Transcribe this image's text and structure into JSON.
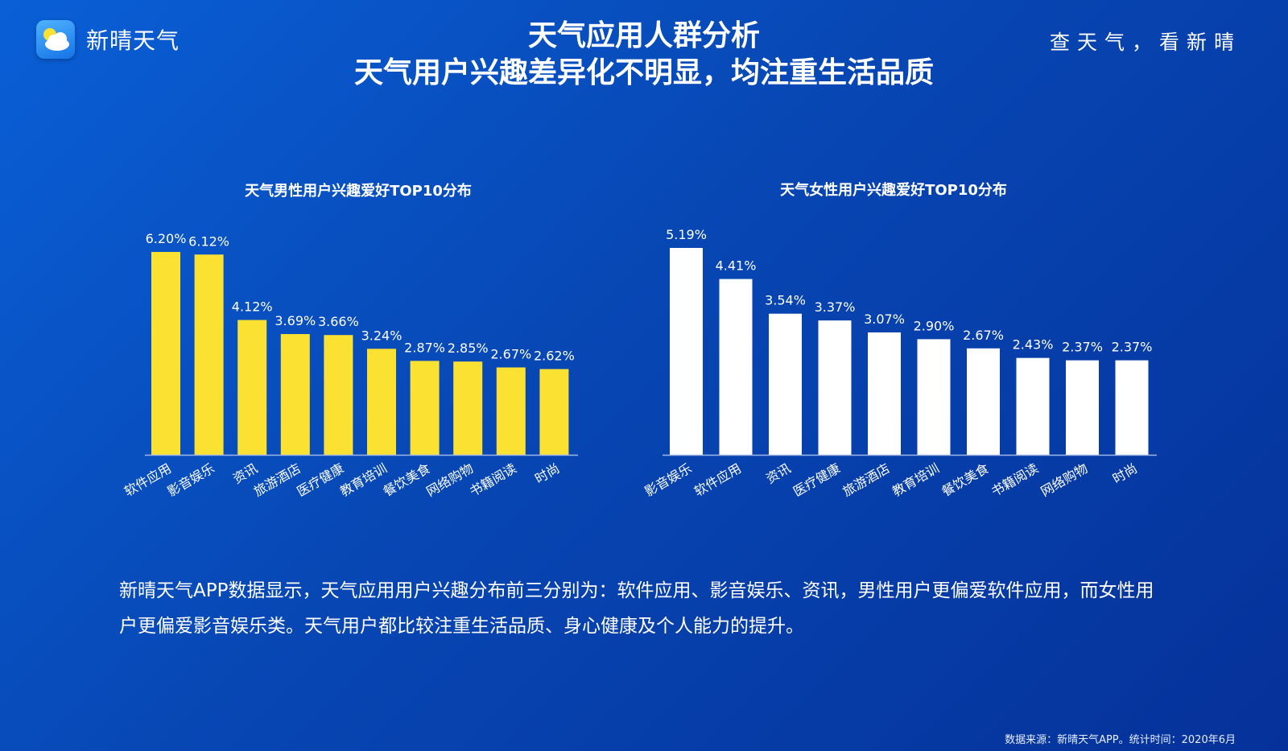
{
  "brand": {
    "name": "新晴天气",
    "slogan": "查天气，看新晴",
    "logo_icon": "cloud-sun-icon"
  },
  "header": {
    "title": "天气应用人群分析",
    "subtitle": "天气用户兴趣差异化不明显，均注重生活品质"
  },
  "colors": {
    "male_bar": "#fbe131",
    "female_bar": "#ffffff",
    "axis": "#9fb6e6"
  },
  "chart_data": [
    {
      "type": "bar",
      "title": "天气男性用户兴趣爱好TOP10分布",
      "categories": [
        "软件应用",
        "影音娱乐",
        "资讯",
        "旅游酒店",
        "医疗健康",
        "教育培训",
        "餐饮美食",
        "网络购物",
        "书籍阅读",
        "时尚"
      ],
      "values": [
        6.2,
        6.12,
        4.12,
        3.69,
        3.66,
        3.24,
        2.87,
        2.85,
        2.67,
        2.62
      ],
      "data_labels": [
        "6.20%",
        "6.12%",
        "4.12%",
        "3.69%",
        "3.66%",
        "3.24%",
        "2.87%",
        "2.85%",
        "2.67%",
        "2.62%"
      ],
      "ylim": [
        0,
        6.2
      ],
      "grid": false,
      "legend": "none"
    },
    {
      "type": "bar",
      "title": "天气女性用户兴趣爱好TOP10分布",
      "categories": [
        "影音娱乐",
        "软件应用",
        "资讯",
        "医疗健康",
        "旅游酒店",
        "教育培训",
        "餐饮美食",
        "书籍阅读",
        "网络购物",
        "时尚"
      ],
      "values": [
        5.19,
        4.41,
        3.54,
        3.37,
        3.07,
        2.9,
        2.67,
        2.43,
        2.37,
        2.37
      ],
      "data_labels": [
        "5.19%",
        "4.41%",
        "3.54%",
        "3.37%",
        "3.07%",
        "2.90%",
        "2.67%",
        "2.43%",
        "2.37%",
        "2.37%"
      ],
      "ylim": [
        0,
        5.19
      ],
      "grid": false,
      "legend": "none"
    }
  ],
  "description": "新晴天气APP数据显示，天气应用用户兴趣分布前三分别为：软件应用、影音娱乐、资讯，男性用户更偏爱软件应用，而女性用户更偏爱影音娱乐类。天气用户都比较注重生活品质、身心健康及个人能力的提升。",
  "source": "数据来源：新晴天气APP。统计时间：2020年6月"
}
